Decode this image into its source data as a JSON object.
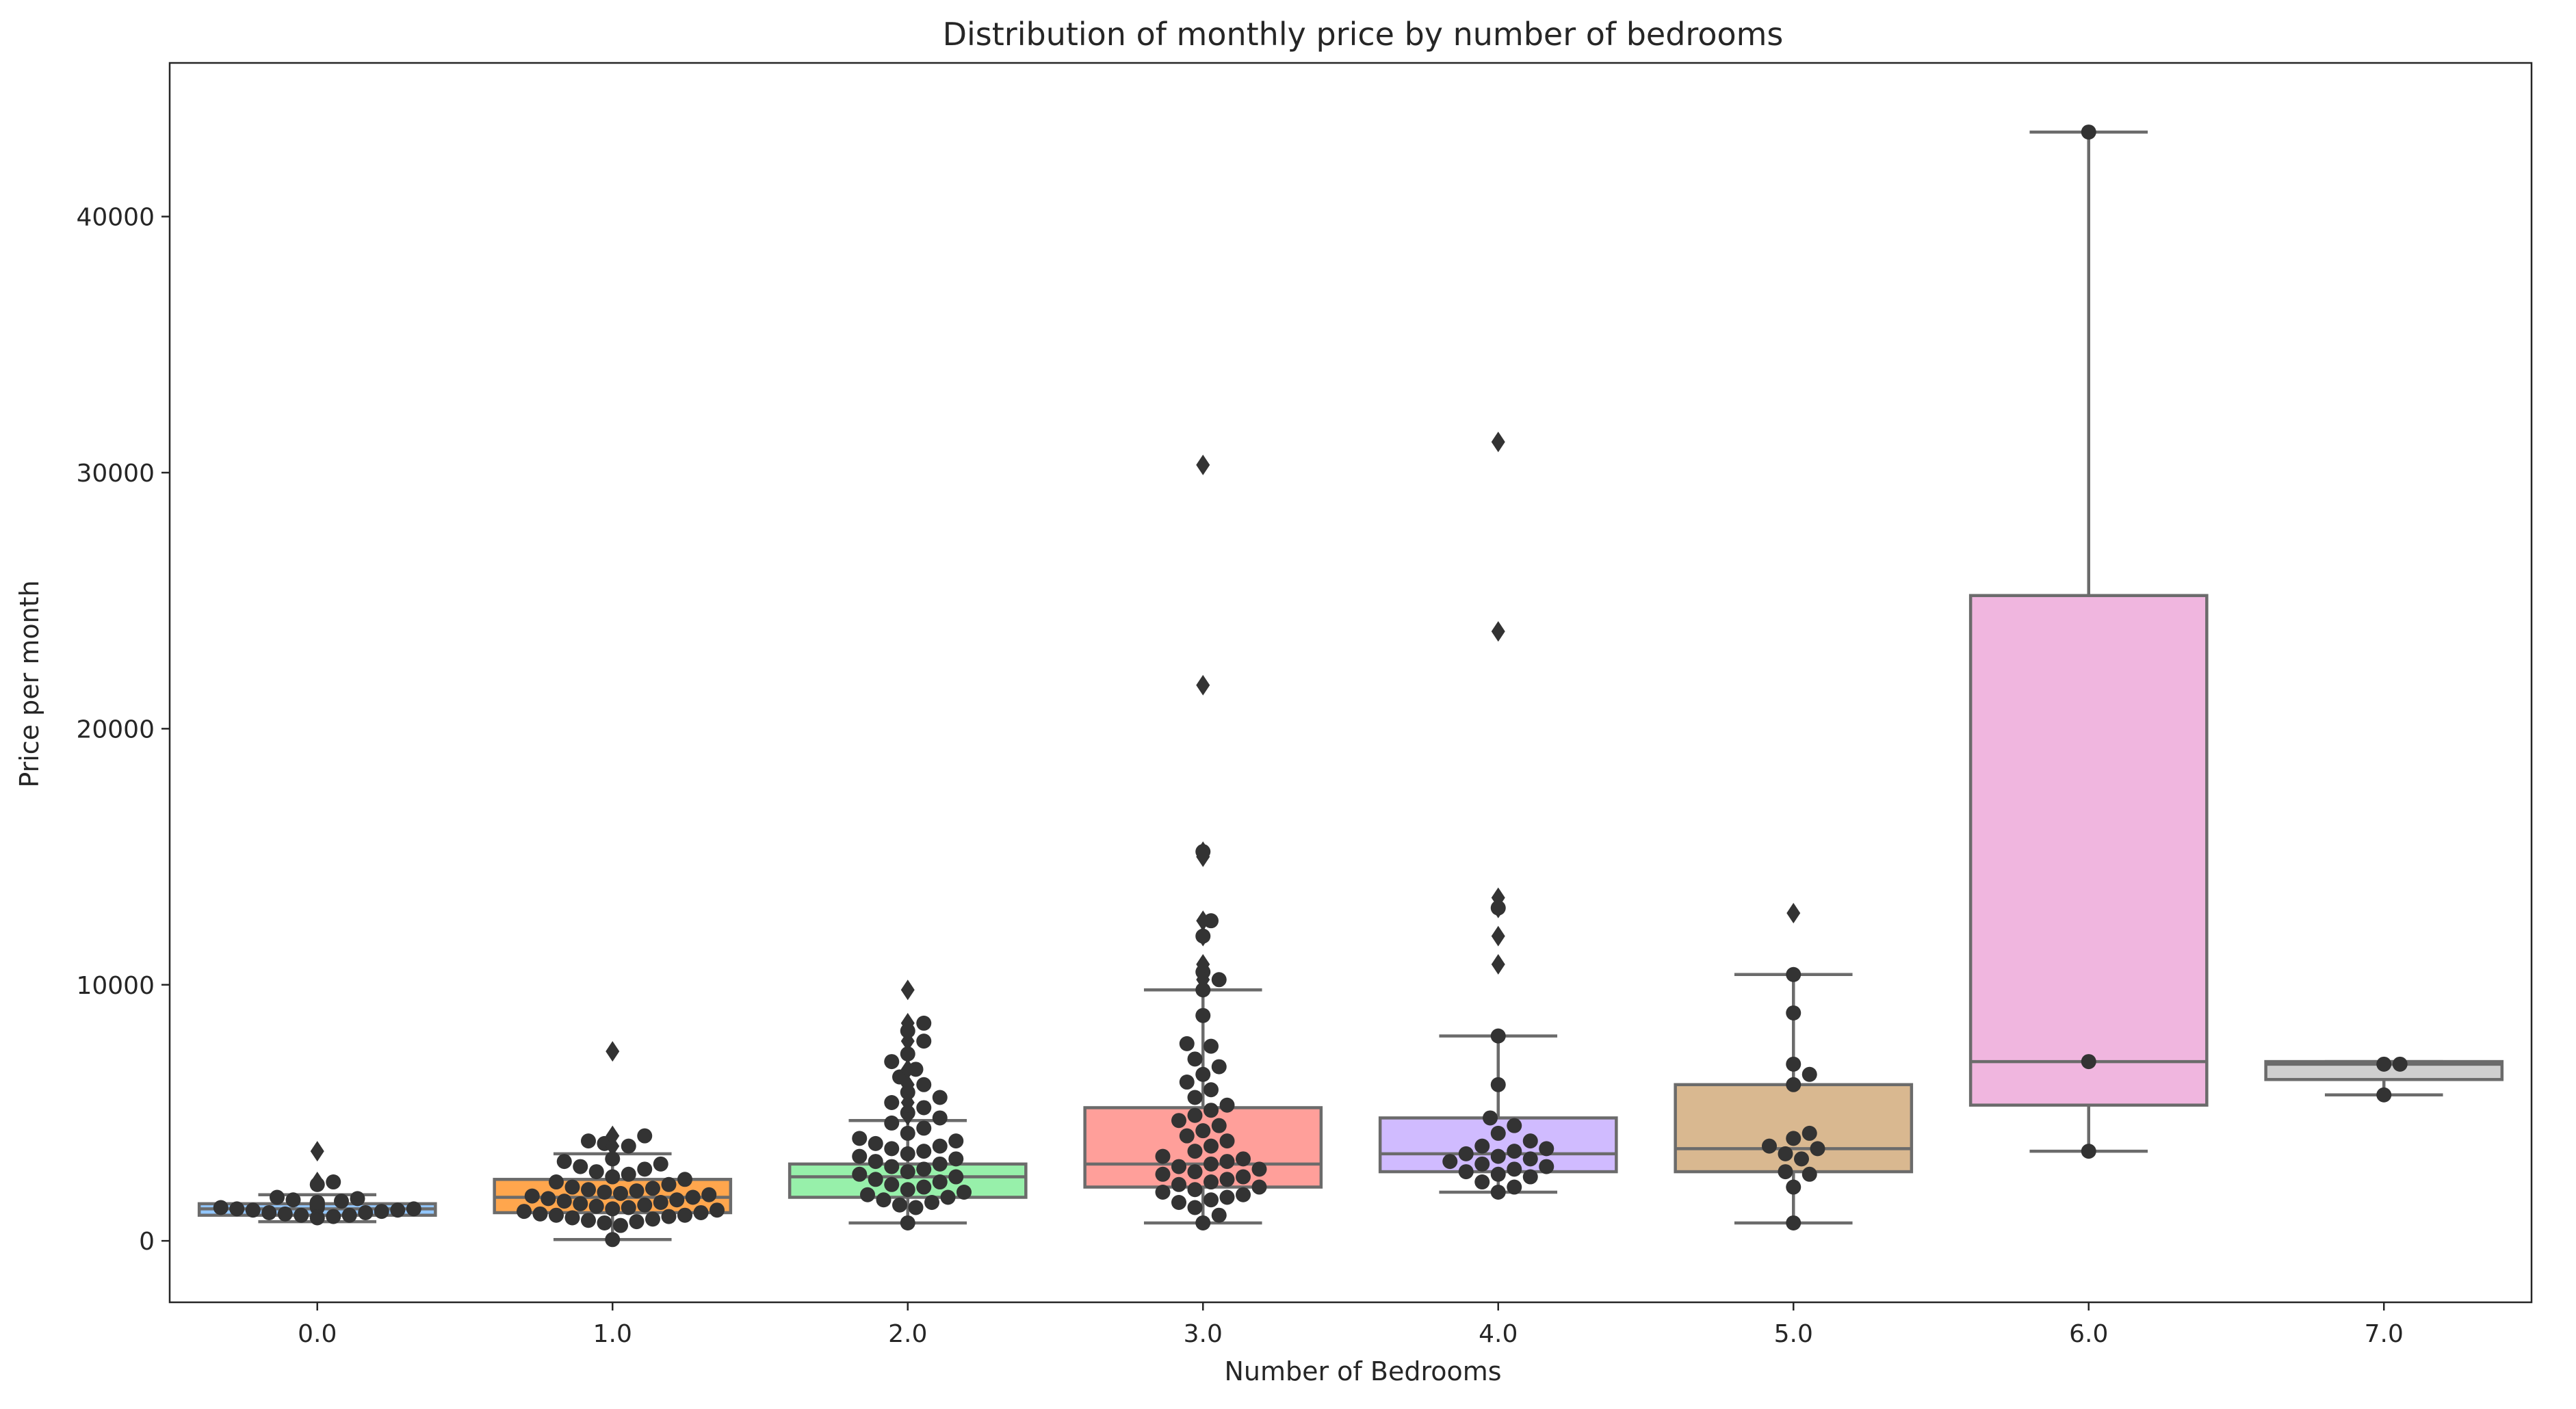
{
  "chart_data": {
    "type": "box+swarm",
    "title": "Distribution of monthly price by number of bedrooms",
    "xlabel": "Number of Bedrooms",
    "ylabel": "Price per month",
    "ylim": [
      -2400,
      46000
    ],
    "yticks": [
      0,
      10000,
      20000,
      30000,
      40000
    ],
    "grid": false,
    "legend": "none",
    "categories": [
      "0.0",
      "1.0",
      "2.0",
      "3.0",
      "4.0",
      "5.0",
      "6.0",
      "7.0"
    ],
    "colors": [
      "#92c6ff",
      "#ffa64d",
      "#97f0aa",
      "#ff9f9a",
      "#d0bbff",
      "#d9b890",
      "#f0b6df",
      "#cfcfcf"
    ],
    "point_color": "#333333",
    "box_edge_color": "#6b6b6b",
    "boxes": [
      {
        "category": "0.0",
        "whisker_low": 750,
        "q1": 1000,
        "median": 1250,
        "q3": 1450,
        "whisker_high": 1800,
        "outliers": [
          2300,
          3500
        ]
      },
      {
        "category": "1.0",
        "whisker_low": 50,
        "q1": 1100,
        "median": 1700,
        "q3": 2400,
        "whisker_high": 3400,
        "outliers": [
          3700,
          4100,
          7400
        ]
      },
      {
        "category": "2.0",
        "whisker_low": 700,
        "q1": 1700,
        "median": 2500,
        "q3": 3000,
        "whisker_high": 4700,
        "outliers": [
          4900,
          5400,
          6100,
          6700,
          7300,
          7800,
          8200,
          8500,
          9800
        ]
      },
      {
        "category": "3.0",
        "whisker_low": 700,
        "q1": 2100,
        "median": 3000,
        "q3": 5200,
        "whisker_high": 9800,
        "outliers": [
          10200,
          10800,
          11900,
          12500,
          15000,
          15200,
          21700,
          30300
        ]
      },
      {
        "category": "4.0",
        "whisker_low": 1900,
        "q1": 2700,
        "median": 3400,
        "q3": 4800,
        "whisker_high": 8000,
        "outliers": [
          10800,
          11900,
          13000,
          13400,
          23800,
          31200
        ]
      },
      {
        "category": "5.0",
        "whisker_low": 700,
        "q1": 2700,
        "median": 3600,
        "q3": 6100,
        "whisker_high": 10400,
        "outliers": [
          12800
        ]
      },
      {
        "category": "6.0",
        "whisker_low": 3500,
        "q1": 5300,
        "median": 7000,
        "q3": 25200,
        "whisker_high": 43300,
        "outliers": []
      },
      {
        "category": "7.0",
        "whisker_low": 5700,
        "q1": 6300,
        "median": 6900,
        "q3": 7000,
        "whisker_high": 7000,
        "outliers": []
      }
    ],
    "swarm_points": [
      {
        "category": "0.0",
        "values": [
          900,
          950,
          1000,
          1000,
          1050,
          1100,
          1100,
          1150,
          1200,
          1200,
          1250,
          1250,
          1300,
          1300,
          1350,
          1400,
          1400,
          1450,
          1500,
          1500,
          1550,
          1600,
          1650,
          1700,
          2200,
          2300
        ]
      },
      {
        "category": "1.0",
        "values": [
          50,
          600,
          700,
          750,
          800,
          850,
          900,
          950,
          1000,
          1000,
          1050,
          1100,
          1150,
          1200,
          1250,
          1300,
          1350,
          1400,
          1450,
          1500,
          1550,
          1600,
          1650,
          1700,
          1750,
          1800,
          1850,
          1900,
          1950,
          2000,
          2050,
          2100,
          2200,
          2300,
          2400,
          2500,
          2600,
          2700,
          2800,
          2900,
          3000,
          3100,
          3200,
          3700,
          3800,
          3900,
          4100
        ]
      },
      {
        "category": "2.0",
        "values": [
          700,
          1300,
          1400,
          1500,
          1600,
          1700,
          1800,
          1900,
          2000,
          2100,
          2200,
          2300,
          2400,
          2500,
          2600,
          2700,
          2800,
          2900,
          3000,
          3100,
          3200,
          3300,
          3400,
          3500,
          3600,
          3700,
          3800,
          3900,
          4000,
          4200,
          4400,
          4600,
          4800,
          5000,
          5200,
          5400,
          5600,
          5800,
          6100,
          6400,
          6700,
          7000,
          7300,
          7800,
          8200,
          8500
        ]
      },
      {
        "category": "3.0",
        "values": [
          700,
          1000,
          1300,
          1500,
          1600,
          1700,
          1800,
          1900,
          2000,
          2100,
          2200,
          2300,
          2400,
          2500,
          2600,
          2700,
          2800,
          2900,
          3000,
          3100,
          3200,
          3300,
          3500,
          3700,
          3900,
          4100,
          4300,
          4500,
          4700,
          4900,
          5100,
          5300,
          5600,
          5900,
          6200,
          6500,
          6800,
          7100,
          7600,
          7700,
          8800,
          9800,
          10200,
          10500,
          11900,
          12500,
          15200
        ]
      },
      {
        "category": "4.0",
        "values": [
          1900,
          2100,
          2300,
          2500,
          2600,
          2700,
          2800,
          2900,
          3000,
          3100,
          3200,
          3300,
          3400,
          3500,
          3600,
          3700,
          3900,
          4200,
          4500,
          4800,
          6100,
          8000,
          13000
        ]
      },
      {
        "category": "5.0",
        "values": [
          700,
          2100,
          2600,
          2700,
          3200,
          3400,
          3600,
          3700,
          4000,
          4200,
          6100,
          6500,
          6900,
          8900,
          10400
        ]
      },
      {
        "category": "6.0",
        "values": [
          3500,
          7000,
          43300
        ]
      },
      {
        "category": "7.0",
        "values": [
          5700,
          6900,
          6900
        ]
      }
    ]
  }
}
